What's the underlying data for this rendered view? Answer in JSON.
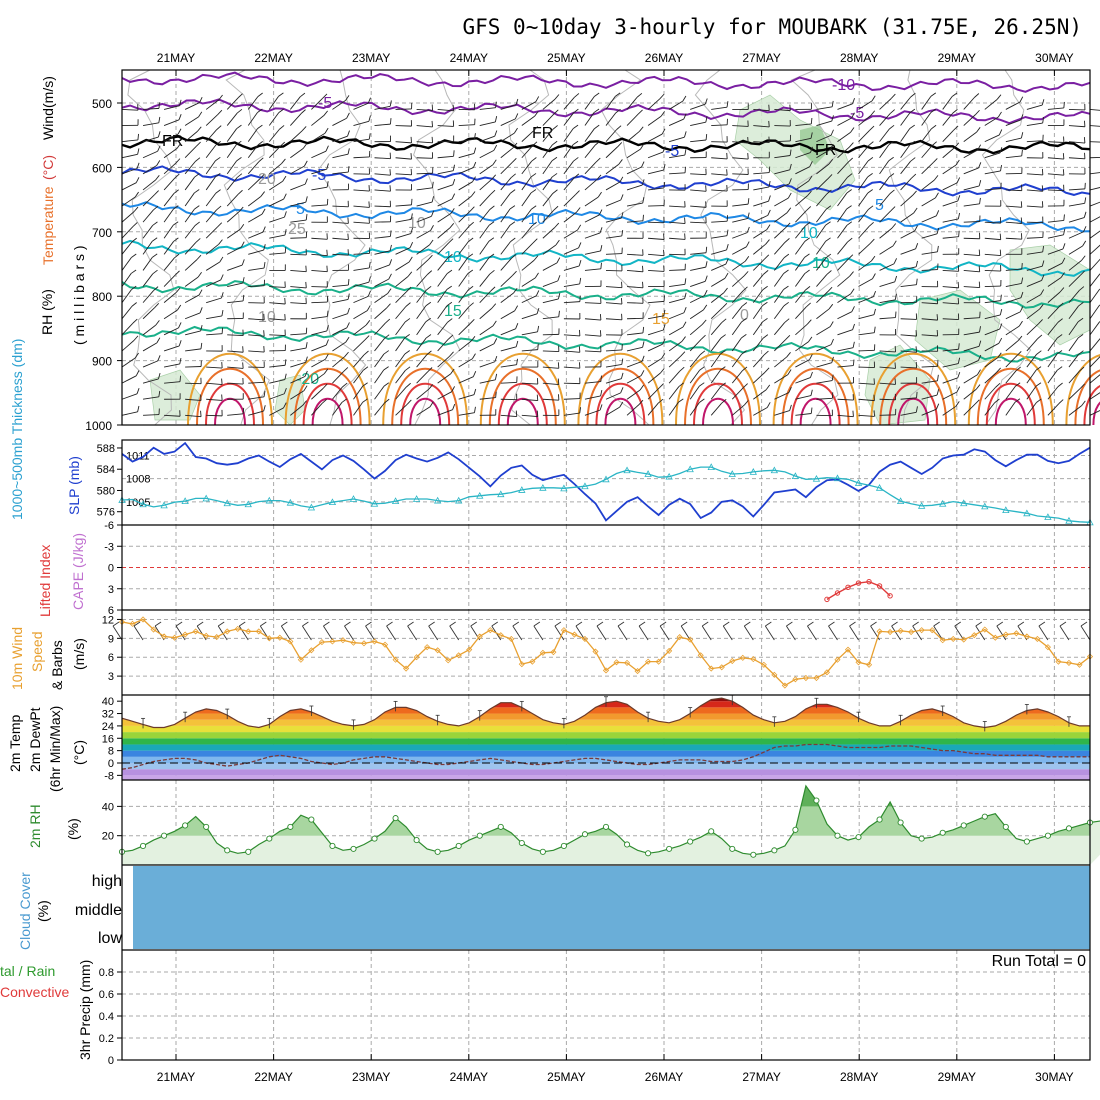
{
  "title": "GFS 0~10day 3-hourly for MOUBARK (31.75E, 26.25N)",
  "dates": [
    "21MAY",
    "22MAY",
    "23MAY",
    "24MAY",
    "25MAY",
    "26MAY",
    "27MAY",
    "28MAY",
    "29MAY",
    "30MAY"
  ],
  "colors": {
    "grid": "#aaaaaa",
    "rh_fill": "#d6ead4",
    "rh_fill_dark": "#8fc48c",
    "slp": "#1f3fcf",
    "thickness": "#2ab5c5",
    "lifted_index": "#e03a3a",
    "wind10m": "#e8a030",
    "temp_fill": "#f06020",
    "rh2m": "#2e8b2e",
    "cloud": "#6aaed8",
    "precip": "#888888"
  },
  "labels": {
    "p1_wind": "Wind",
    "p1_wind_unit": "(m/s)",
    "p1_temperature": "Temperature",
    "p1_temperature_unit": "(°C)",
    "p1_rh": "RH (%)",
    "p1_millibars": "( m i l l i b a r s )",
    "p2_thickness": "1000~500mb Thickness (dm)",
    "p2_slp": "SLP (mb)",
    "p3_li": "Lifted Index",
    "p3_cape": "CAPE (J/kg)",
    "p4_wind": "10m Wind",
    "p4_speed": "Speed",
    "p4_barbs": "& Barbs",
    "p4_unit": "(m/s)",
    "p5_temp": "2m Temp",
    "p5_dewpt": "2m DewPt",
    "p5_minmax": "(6hr Min/Max)",
    "p5_unit": "(°C)",
    "p6_rh": "2m RH",
    "p6_unit": "(%)",
    "p7_cloud": "Cloud Cover",
    "p7_unit": "(%)",
    "p7_high": "high",
    "p7_middle": "middle",
    "p7_low": "low",
    "p8_total": "tal / Rain",
    "p8_convective": "Convective",
    "p8_precip": "3hr Precip (mm)",
    "run_total": "Run Total = 0"
  },
  "chart_data": [
    {
      "type": "contour",
      "title": "Temperature / RH / Wind cross-section",
      "ylabel": "millibars",
      "y_ticks": [
        "500",
        "600",
        "700",
        "800",
        "900",
        "1000"
      ],
      "contour_labels": [
        "-10",
        "-5",
        "-5",
        "FR",
        "FR",
        "FR",
        "-5",
        "-5",
        "5",
        "5",
        "10",
        "10",
        "10",
        "10",
        "15",
        "15",
        "-20",
        "20",
        "25",
        "0",
        "10",
        "10"
      ]
    },
    {
      "type": "line",
      "title": "SLP and 1000~500mb Thickness",
      "y_ticks_left": [
        "576",
        "580",
        "584",
        "588"
      ],
      "y_ticks_right": [
        "1005",
        "1008",
        "1011"
      ],
      "series": [
        {
          "name": "SLP (mb)",
          "values": [
            1011.2,
            1010.2,
            1010.8,
            1012.0,
            1011.2,
            1011.5,
            1012.6,
            1010.8,
            1010.6,
            1010.0,
            1009.8,
            1010.0,
            1010.6,
            1011.0,
            1010.2,
            1009.5,
            1010.5,
            1011.2,
            1010.2,
            1009.2,
            1010.4,
            1011.0,
            1010.3,
            1009.2,
            1008.0,
            1009.0,
            1010.4,
            1011.1,
            1010.6,
            1010.2,
            1010.7,
            1011.4,
            1010.5,
            1009.4,
            1008.3,
            1007.0,
            1008.4,
            1009.4,
            1009.7,
            1008.5,
            1007.8,
            1008.2,
            1008.5,
            1007.3,
            1006.0,
            1004.8,
            1002.6,
            1003.8,
            1005.0,
            1005.6,
            1004.4,
            1003.3,
            1004.6,
            1005.4,
            1004.7,
            1002.9,
            1003.6,
            1005.0,
            1005.2,
            1004.4,
            1003.1,
            1004.6,
            1006.2,
            1006.4,
            1006.6,
            1005.6,
            1006.9,
            1007.8,
            1007.9,
            1007.2,
            1006.4,
            1007.2,
            1008.9,
            1009.8,
            1010.2,
            1009.4,
            1008.6,
            1009.4,
            1010.6,
            1011.0,
            1011.1,
            1011.8,
            1011.5,
            1010.4,
            1009.6,
            1010.4,
            1011.1,
            1011.1,
            1010.3,
            1010.0,
            1010.3,
            1011.2,
            1012.0
          ]
        },
        {
          "name": "1000~500mb Thickness (dm)",
          "values": [
            578.2,
            578.3,
            577.4,
            576.9,
            577.2,
            577.8,
            578.0,
            578.5,
            578.5,
            578.1,
            577.6,
            577.2,
            577.4,
            577.9,
            578.1,
            578.1,
            577.7,
            577.1,
            576.8,
            577.3,
            577.8,
            578.1,
            578.4,
            578.0,
            577.5,
            577.6,
            578.0,
            578.4,
            578.4,
            578.4,
            578.1,
            577.9,
            578.1,
            578.8,
            579.0,
            579.2,
            579.3,
            579.6,
            580.1,
            580.4,
            580.5,
            580.5,
            580.4,
            580.6,
            580.8,
            581.2,
            582.1,
            583.2,
            583.8,
            583.4,
            583.1,
            582.5,
            582.6,
            583.2,
            584.0,
            584.4,
            584.4,
            583.6,
            583.1,
            583.2,
            583.5,
            583.7,
            583.8,
            583.5,
            582.7,
            582.1,
            582.2,
            582.4,
            582.3,
            582.1,
            581.4,
            581.0,
            580.5,
            579.2,
            578.0,
            577.5,
            577.1,
            577.2,
            577.5,
            577.9,
            577.6,
            577.3,
            577.0,
            576.7,
            576.3,
            576.0,
            575.7,
            575.2,
            575.0,
            574.8,
            574.3,
            574.1,
            574.0
          ]
        }
      ]
    },
    {
      "type": "line",
      "title": "Lifted Index / CAPE",
      "y_ticks": [
        "-6",
        "-3",
        "0",
        "3",
        "6"
      ],
      "series": [
        {
          "name": "Lifted Index",
          "values": [
            6,
            6,
            6,
            6,
            6,
            6,
            6,
            6,
            6,
            6,
            6,
            6,
            6,
            6,
            6,
            6,
            6,
            6,
            6,
            6,
            6,
            6,
            6,
            6,
            6,
            6,
            6,
            6,
            6,
            6,
            6,
            6,
            6,
            6,
            6,
            6,
            6,
            6,
            6,
            6,
            6,
            6,
            6,
            6,
            6,
            6,
            6,
            6,
            6,
            6,
            6,
            6,
            6,
            6,
            6,
            6,
            6,
            6,
            6,
            6,
            6,
            6,
            6,
            6,
            6,
            6,
            6,
            4.5,
            3.6,
            2.8,
            2.2,
            2.0,
            2.6,
            4.0,
            6,
            6,
            6,
            6,
            6,
            6,
            6,
            6,
            6,
            6,
            6,
            6,
            6,
            6,
            6,
            6,
            6,
            6,
            6
          ]
        }
      ]
    },
    {
      "type": "line",
      "title": "10m Wind Speed & Barbs",
      "ylabel": "(m/s)",
      "y_ticks": [
        "3",
        "6",
        "9",
        "12"
      ],
      "series": [
        {
          "name": "10m Wind Speed",
          "values": [
            11.6,
            11.3,
            12.0,
            10.4,
            9.3,
            9.1,
            9.6,
            10.1,
            9.4,
            9.2,
            10.1,
            10.5,
            10.1,
            10.1,
            9.0,
            9.1,
            8.5,
            5.6,
            7.1,
            8.4,
            8.5,
            8.7,
            8.3,
            8.2,
            8.5,
            8.0,
            5.6,
            4.2,
            6.0,
            7.6,
            7.1,
            5.5,
            6.3,
            7.2,
            9.3,
            10.3,
            9.5,
            8.9,
            4.9,
            5.3,
            6.7,
            6.8,
            10.3,
            9.6,
            8.9,
            6.9,
            3.9,
            5.2,
            5.1,
            3.8,
            5.3,
            5.3,
            7.0,
            9.2,
            8.8,
            6.3,
            4.2,
            4.4,
            5.4,
            5.9,
            5.7,
            4.8,
            3.2,
            1.5,
            2.5,
            2.7,
            2.7,
            3.6,
            5.6,
            7.2,
            5.2,
            4.8,
            10.1,
            10.0,
            10.2,
            10.0,
            10.3,
            10.3,
            8.7,
            8.9,
            8.8,
            9.5,
            10.4,
            9.1,
            9.6,
            9.8,
            9.3,
            8.9,
            7.6,
            5.3,
            5.1,
            4.8,
            6.1
          ]
        }
      ]
    },
    {
      "type": "area",
      "title": "2m Temp / 2m DewPt (6hr Min/Max)",
      "ylabel": "(°C)",
      "y_ticks": [
        "-8",
        "0",
        "8",
        "16",
        "24",
        "32",
        "40"
      ],
      "series": [
        {
          "name": "2m Temp",
          "values": [
            29,
            27,
            25,
            23,
            23,
            25,
            29,
            33,
            35,
            34,
            31,
            27,
            24,
            23,
            25,
            30,
            34,
            35,
            33,
            30,
            27,
            25,
            24,
            25,
            28,
            33,
            36,
            36,
            34,
            30,
            27,
            25,
            24,
            26,
            30,
            35,
            39,
            39,
            36,
            32,
            28,
            26,
            25,
            27,
            31,
            36,
            39,
            40,
            38,
            33,
            29,
            27,
            26,
            28,
            32,
            37,
            41,
            42,
            40,
            36,
            31,
            28,
            26,
            27,
            30,
            35,
            38,
            38,
            36,
            33,
            29,
            26,
            24,
            24,
            27,
            31,
            34,
            35,
            33,
            30,
            26,
            24,
            23,
            24,
            27,
            31,
            34,
            35,
            33,
            30,
            26,
            24,
            24
          ]
        },
        {
          "name": "2m DewPt",
          "values": [
            -4,
            -3,
            -1,
            1,
            2,
            3,
            3,
            2,
            0,
            -1,
            -2,
            -1,
            0,
            2,
            4,
            5,
            4,
            3,
            1,
            0,
            -1,
            0,
            2,
            3,
            4,
            4,
            3,
            2,
            1,
            0,
            -1,
            -1,
            0,
            1,
            2,
            3,
            2,
            1,
            0,
            -1,
            -1,
            0,
            1,
            2,
            3,
            3,
            2,
            1,
            0,
            -1,
            -1,
            0,
            1,
            2,
            2,
            2,
            1,
            1,
            1,
            2,
            4,
            7,
            10,
            11,
            11,
            12,
            12,
            12,
            11,
            10,
            10,
            10,
            10,
            11,
            11,
            11,
            10,
            9,
            8,
            8,
            7,
            6,
            6,
            5,
            5,
            5,
            5,
            5,
            4,
            4,
            4,
            4,
            4
          ]
        }
      ]
    },
    {
      "type": "area",
      "title": "2m RH",
      "ylabel": "(%)",
      "y_ticks": [
        "20",
        "40"
      ],
      "series": [
        {
          "name": "2m RH",
          "values": [
            9,
            10,
            13,
            17,
            20,
            23,
            27,
            33,
            26,
            15,
            10,
            8,
            9,
            14,
            18,
            23,
            26,
            34,
            31,
            22,
            13,
            10,
            11,
            14,
            18,
            23,
            32,
            26,
            17,
            11,
            9,
            10,
            13,
            17,
            20,
            23,
            26,
            22,
            15,
            11,
            9,
            10,
            13,
            17,
            21,
            23,
            26,
            21,
            14,
            10,
            8,
            9,
            11,
            13,
            16,
            19,
            23,
            18,
            11,
            8,
            7,
            8,
            10,
            13,
            24,
            54,
            44,
            28,
            20,
            17,
            19,
            26,
            31,
            43,
            29,
            20,
            18,
            19,
            22,
            24,
            27,
            30,
            33,
            35,
            26,
            18,
            16,
            18,
            20,
            23,
            25,
            27,
            29,
            30,
            26,
            22
          ]
        }
      ]
    },
    {
      "type": "heatmap",
      "title": "Cloud Cover",
      "y_ticks": [
        "high",
        "middle",
        "low"
      ],
      "values": [
        100
      ]
    },
    {
      "type": "bar",
      "title": "3hr Precip (mm)",
      "y_ticks": [
        "0",
        "0.2",
        "0.4",
        "0.6",
        "0.8"
      ],
      "values": [
        0
      ],
      "annotation": "Run Total = 0"
    }
  ]
}
